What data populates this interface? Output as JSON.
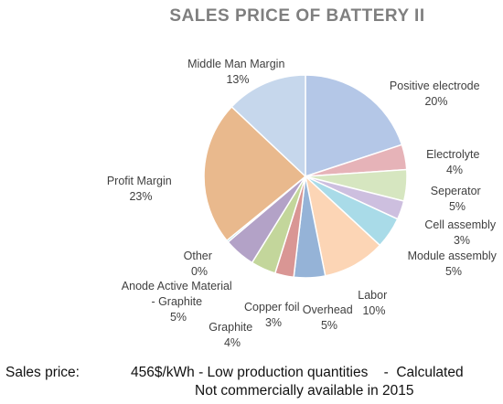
{
  "chart_data": {
    "type": "pie",
    "title": "SALES PRICE OF BATTERY II",
    "slices": [
      {
        "label": "Positive electrode",
        "pct_text": "20%",
        "value": 20,
        "color": "#b4c7e7"
      },
      {
        "label": "Electrolyte",
        "pct_text": "4%",
        "value": 4,
        "color": "#e6b3b8"
      },
      {
        "label": "Seperator",
        "pct_text": "5%",
        "value": 5,
        "color": "#d6e6c0"
      },
      {
        "label": "Cell assembly",
        "pct_text": "3%",
        "value": 3,
        "color": "#cdbfdf"
      },
      {
        "label": "Module assembly",
        "pct_text": "5%",
        "value": 5,
        "color": "#a9dbe8"
      },
      {
        "label": "Labor",
        "pct_text": "10%",
        "value": 10,
        "color": "#fcd5b5"
      },
      {
        "label": "Overhead",
        "pct_text": "5%",
        "value": 5,
        "color": "#95b3d7"
      },
      {
        "label": "Copper foil",
        "pct_text": "3%",
        "value": 3,
        "color": "#d99694"
      },
      {
        "label": "Graphite",
        "pct_text": "4%",
        "value": 4,
        "color": "#c3d69b"
      },
      {
        "label": "Anode Active Material - Graphite",
        "pct_text": "5%",
        "value": 5,
        "color": "#b3a2c7"
      },
      {
        "label": "Other",
        "pct_text": "0%",
        "value": 0.3,
        "color": "#93cddd"
      },
      {
        "label": "Profit Margin",
        "pct_text": "23%",
        "value": 23,
        "color": "#e9b98d"
      },
      {
        "label": "Middle Man Margin",
        "pct_text": "13%",
        "value": 13,
        "color": "#c6d7ec"
      }
    ]
  },
  "footer": {
    "label": "Sales price:",
    "value": "456$/kWh - Low production quantities    -  Calculated",
    "note": "Not commercially available in 2015"
  }
}
